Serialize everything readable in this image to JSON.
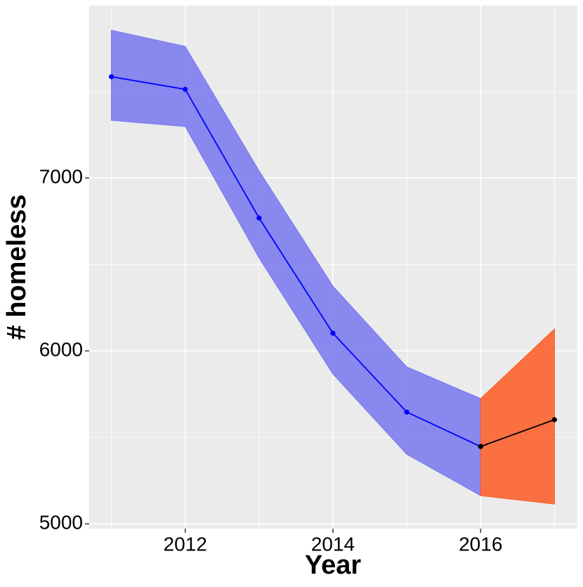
{
  "chart_data": {
    "type": "ribbon-line",
    "x_label": "Year",
    "y_label": "# homeless",
    "xlim": [
      2010.7,
      2017.31
    ],
    "ylim": [
      4972,
      7996
    ],
    "xticks": [
      2012,
      2014,
      2016
    ],
    "yticks": [
      5000,
      6000,
      7000
    ],
    "minor_xticks": [
      2011,
      2013,
      2015,
      2017
    ],
    "minor_yticks": [
      5500,
      6500,
      7500
    ],
    "grid": true,
    "series": [
      {
        "color": "#0000ff",
        "fill": "#7777f0",
        "x": [
          2011,
          2012,
          2013,
          2014,
          2015,
          2016
        ],
        "values": [
          7585,
          7512,
          6768,
          6102,
          5646,
          5447
        ],
        "upper": [
          7854,
          7760,
          7041,
          6374,
          5907,
          5724
        ],
        "lower": [
          7333,
          7297,
          6537,
          5866,
          5402,
          5163
        ]
      },
      {
        "color": "#000000",
        "fill": "#fd5a22",
        "x": [
          2016,
          2017
        ],
        "values": [
          5447,
          5602
        ],
        "upper": [
          5724,
          6126
        ],
        "lower": [
          5163,
          5114
        ]
      }
    ]
  }
}
